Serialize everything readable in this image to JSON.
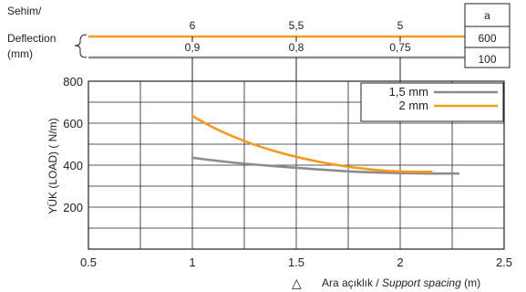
{
  "deflection_header": {
    "title_line1": "Sehim/",
    "title_line2": "Deflection",
    "title_line3": "(mm)",
    "rows": [
      {
        "values": [
          "6",
          "5,5",
          "5"
        ],
        "x_positions": [
          1,
          1.5,
          2
        ],
        "color": "#F39A1F",
        "a_value": "600"
      },
      {
        "values": [
          "0,9",
          "0,8",
          "0,75"
        ],
        "x_positions": [
          1,
          1.5,
          2
        ],
        "color": "#8C8C8C",
        "a_value": "100"
      }
    ],
    "a_header": "a"
  },
  "chart_data": {
    "type": "line",
    "title": "",
    "ylabel": "YÜK (LOAD) ( N/m)",
    "xlabel_regular": "Ara açıklık / ",
    "xlabel_italic": "Support spacing",
    "xlabel_unit": " (m)",
    "xlim": [
      0.5,
      2.5
    ],
    "ylim": [
      0,
      800
    ],
    "x_ticks": [
      {
        "value": 0.5,
        "label": "0.5"
      },
      {
        "value": 1,
        "label": "1"
      },
      {
        "value": 1.5,
        "label": "1.5"
      },
      {
        "value": 2,
        "label": "2"
      },
      {
        "value": 2.5,
        "label": "2.5"
      }
    ],
    "y_ticks": [
      {
        "value": 200,
        "label": "200"
      },
      {
        "value": 400,
        "label": "400"
      },
      {
        "value": 600,
        "label": "600"
      },
      {
        "value": 800,
        "label": "800"
      }
    ],
    "grid": true,
    "legend_position": "top-right",
    "series": [
      {
        "name": "1,5 mm",
        "color": "#8C8C8C",
        "points": [
          {
            "x": 1.0,
            "y": 435
          },
          {
            "x": 1.2,
            "y": 412
          },
          {
            "x": 1.4,
            "y": 395
          },
          {
            "x": 1.6,
            "y": 380
          },
          {
            "x": 1.8,
            "y": 368
          },
          {
            "x": 2.0,
            "y": 362
          },
          {
            "x": 2.15,
            "y": 360
          },
          {
            "x": 2.28,
            "y": 360
          }
        ]
      },
      {
        "name": "2 mm",
        "color": "#F39A1F",
        "points": [
          {
            "x": 1.0,
            "y": 635
          },
          {
            "x": 1.1,
            "y": 580
          },
          {
            "x": 1.2,
            "y": 535
          },
          {
            "x": 1.3,
            "y": 497
          },
          {
            "x": 1.4,
            "y": 466
          },
          {
            "x": 1.5,
            "y": 440
          },
          {
            "x": 1.6,
            "y": 418
          },
          {
            "x": 1.7,
            "y": 400
          },
          {
            "x": 1.8,
            "y": 386
          },
          {
            "x": 1.9,
            "y": 376
          },
          {
            "x": 2.0,
            "y": 370
          },
          {
            "x": 2.15,
            "y": 368
          }
        ]
      }
    ],
    "footnote_symbol": "△"
  }
}
